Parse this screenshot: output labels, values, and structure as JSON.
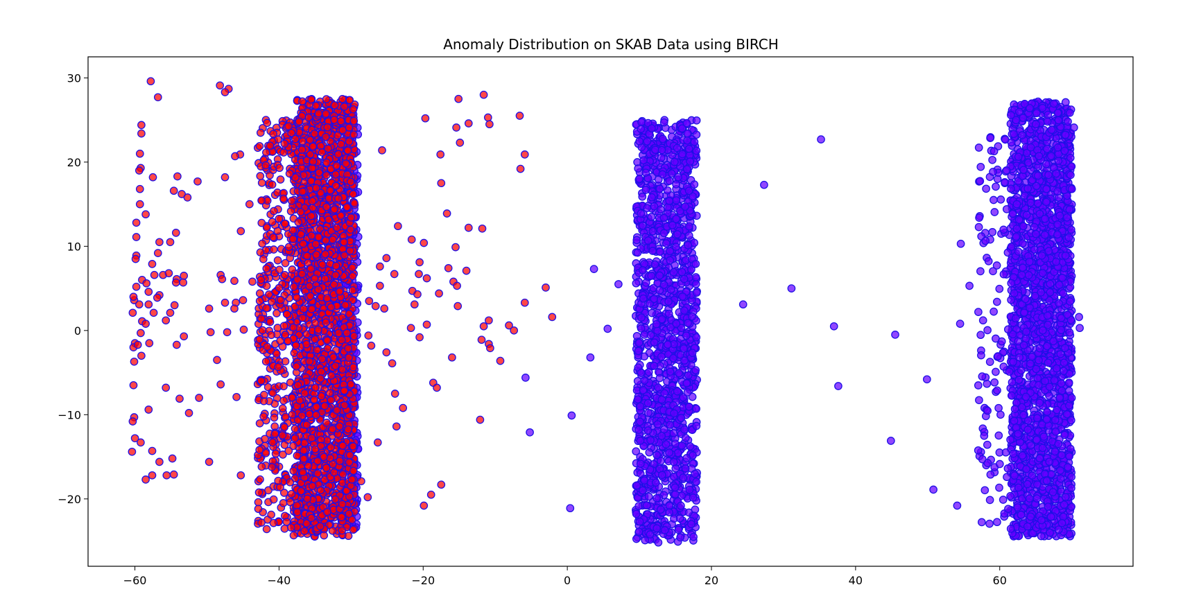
{
  "chart_data": {
    "type": "scatter",
    "title": "Anomaly Distribution on SKAB Data using BIRCH",
    "xlabel": "",
    "ylabel": "",
    "xlim": [
      -66.5,
      78.5
    ],
    "ylim": [
      -28,
      32.5
    ],
    "x_ticks": [
      -60,
      -40,
      -20,
      0,
      20,
      40,
      60
    ],
    "x_tick_labels": [
      "−60",
      "−40",
      "−20",
      "0",
      "20",
      "40",
      "60"
    ],
    "y_ticks": [
      -20,
      -10,
      0,
      10,
      20,
      30
    ],
    "y_tick_labels": [
      "−20",
      "−10",
      "0",
      "10",
      "20",
      "30"
    ],
    "grid": false,
    "legend": "none",
    "colors": {
      "anomaly_fill": "#ff0000",
      "normal_fill": "#6600ff",
      "edge": "#1f10e6"
    },
    "series": [
      {
        "color": "#ff0000",
        "dense_bands": [
          {
            "x_range": [
              -38,
              -29.5
            ],
            "y_range": [
              -24.5,
              27.5
            ],
            "count": 2200
          },
          {
            "x_range": [
              -43,
              -38
            ],
            "y_range": [
              -24,
              25
            ],
            "count": 380
          }
        ],
        "points": [
          [
            -57.8,
            29.6
          ],
          [
            -48.2,
            29.1
          ],
          [
            -47.0,
            28.7
          ],
          [
            -47.5,
            28.3
          ],
          [
            -56.8,
            27.7
          ],
          [
            -11.6,
            28.0
          ],
          [
            -15.1,
            27.5
          ],
          [
            -6.6,
            25.5
          ],
          [
            -19.7,
            25.2
          ],
          [
            -11.0,
            25.3
          ],
          [
            -13.7,
            24.6
          ],
          [
            -59.1,
            24.4
          ],
          [
            -10.8,
            24.5
          ],
          [
            -15.4,
            24.1
          ],
          [
            -59.1,
            23.4
          ],
          [
            -14.9,
            22.3
          ],
          [
            -25.7,
            21.4
          ],
          [
            -59.3,
            21.0
          ],
          [
            -45.4,
            20.9
          ],
          [
            -46.1,
            20.7
          ],
          [
            -17.6,
            20.9
          ],
          [
            -5.9,
            20.9
          ],
          [
            -59.2,
            19.3
          ],
          [
            -59.4,
            19.0
          ],
          [
            -6.5,
            19.2
          ],
          [
            -57.5,
            18.2
          ],
          [
            -47.5,
            18.2
          ],
          [
            -54.1,
            18.3
          ],
          [
            -51.3,
            17.7
          ],
          [
            -17.5,
            17.5
          ],
          [
            -59.3,
            16.8
          ],
          [
            -54.6,
            16.6
          ],
          [
            -53.5,
            16.2
          ],
          [
            -52.7,
            15.8
          ],
          [
            -59.3,
            15.0
          ],
          [
            -44.1,
            15.0
          ],
          [
            -58.5,
            13.8
          ],
          [
            -16.7,
            13.9
          ],
          [
            -59.8,
            12.8
          ],
          [
            -23.5,
            12.4
          ],
          [
            -13.7,
            12.2
          ],
          [
            -11.8,
            12.1
          ],
          [
            -45.3,
            11.8
          ],
          [
            -54.3,
            11.6
          ],
          [
            -59.8,
            11.1
          ],
          [
            -21.6,
            10.8
          ],
          [
            -19.9,
            10.4
          ],
          [
            -56.6,
            10.5
          ],
          [
            -55.1,
            10.5
          ],
          [
            -15.5,
            9.9
          ],
          [
            -56.8,
            9.2
          ],
          [
            -59.8,
            8.9
          ],
          [
            -59.9,
            8.5
          ],
          [
            -25.1,
            8.6
          ],
          [
            -20.5,
            8.1
          ],
          [
            -57.6,
            7.9
          ],
          [
            -26.0,
            7.6
          ],
          [
            -16.5,
            7.4
          ],
          [
            -57.3,
            6.6
          ],
          [
            -56.1,
            6.6
          ],
          [
            -55.3,
            6.8
          ],
          [
            -54.2,
            6.1
          ],
          [
            -53.2,
            6.5
          ],
          [
            -48.1,
            6.6
          ],
          [
            -46.2,
            5.9
          ],
          [
            -43.7,
            5.8
          ],
          [
            -59.0,
            6.0
          ],
          [
            -47.9,
            6.1
          ],
          [
            -24.0,
            6.7
          ],
          [
            -20.6,
            6.7
          ],
          [
            -19.5,
            6.2
          ],
          [
            -14.0,
            7.1
          ],
          [
            -59.8,
            5.2
          ],
          [
            -58.4,
            5.6
          ],
          [
            -54.3,
            5.7
          ],
          [
            -53.3,
            5.7
          ],
          [
            -26.0,
            5.3
          ],
          [
            -21.5,
            4.7
          ],
          [
            -15.8,
            5.8
          ],
          [
            -15.3,
            5.3
          ],
          [
            -60.1,
            3.6
          ],
          [
            -60.2,
            4.0
          ],
          [
            -58.1,
            4.6
          ],
          [
            -56.6,
            4.2
          ],
          [
            -56.9,
            3.9
          ],
          [
            -45.0,
            3.6
          ],
          [
            -46.0,
            3.3
          ],
          [
            -47.5,
            3.3
          ],
          [
            -27.5,
            3.5
          ],
          [
            -20.8,
            4.3
          ],
          [
            -17.8,
            4.4
          ],
          [
            -5.9,
            3.3
          ],
          [
            -3.0,
            5.1
          ],
          [
            -60.3,
            2.1
          ],
          [
            -59.4,
            3.1
          ],
          [
            -58.1,
            3.1
          ],
          [
            -57.4,
            2.1
          ],
          [
            -55.1,
            2.1
          ],
          [
            -54.5,
            3.0
          ],
          [
            -49.7,
            2.6
          ],
          [
            -46.2,
            2.6
          ],
          [
            -26.6,
            2.9
          ],
          [
            -21.2,
            3.1
          ],
          [
            -25.4,
            2.6
          ],
          [
            -15.2,
            2.9
          ],
          [
            -59.0,
            1.1
          ],
          [
            -58.5,
            0.8
          ],
          [
            -55.7,
            1.2
          ],
          [
            -10.9,
            1.2
          ],
          [
            -11.6,
            0.5
          ],
          [
            -8.1,
            0.6
          ],
          [
            -7.4,
            0.0
          ],
          [
            -2.1,
            1.6
          ],
          [
            -59.2,
            -0.3
          ],
          [
            -53.2,
            -0.7
          ],
          [
            -49.5,
            -0.2
          ],
          [
            -47.2,
            -0.2
          ],
          [
            -44.9,
            0.1
          ],
          [
            -27.6,
            -0.6
          ],
          [
            -21.7,
            0.3
          ],
          [
            -19.5,
            0.7
          ],
          [
            -60.0,
            -1.5
          ],
          [
            -60.2,
            -2.0
          ],
          [
            -59.6,
            -1.7
          ],
          [
            -58.0,
            -1.5
          ],
          [
            -54.2,
            -1.7
          ],
          [
            -27.2,
            -1.8
          ],
          [
            -20.5,
            -0.8
          ],
          [
            -11.9,
            -1.1
          ],
          [
            -10.9,
            -1.6
          ],
          [
            -10.7,
            -2.1
          ],
          [
            -60.1,
            -3.7
          ],
          [
            -59.1,
            -3.0
          ],
          [
            -48.6,
            -3.5
          ],
          [
            -25.1,
            -2.6
          ],
          [
            -24.3,
            -3.9
          ],
          [
            -16.0,
            -3.2
          ],
          [
            -9.3,
            -3.6
          ],
          [
            -60.2,
            -6.5
          ],
          [
            -55.7,
            -6.8
          ],
          [
            -48.1,
            -6.4
          ],
          [
            -18.6,
            -6.2
          ],
          [
            -18.1,
            -6.8
          ],
          [
            -23.9,
            -7.5
          ],
          [
            -53.8,
            -8.1
          ],
          [
            -51.1,
            -8.0
          ],
          [
            -45.9,
            -7.9
          ],
          [
            -52.5,
            -9.8
          ],
          [
            -58.1,
            -9.4
          ],
          [
            -22.8,
            -9.2
          ],
          [
            -60.1,
            -10.3
          ],
          [
            -60.3,
            -10.8
          ],
          [
            -12.1,
            -10.6
          ],
          [
            -23.7,
            -11.4
          ],
          [
            -60.0,
            -12.8
          ],
          [
            -59.2,
            -13.3
          ],
          [
            -26.3,
            -13.3
          ],
          [
            -60.4,
            -14.4
          ],
          [
            -57.6,
            -14.3
          ],
          [
            -56.6,
            -15.6
          ],
          [
            -54.8,
            -15.2
          ],
          [
            -49.7,
            -15.6
          ],
          [
            -57.6,
            -17.2
          ],
          [
            -54.6,
            -17.1
          ],
          [
            -58.5,
            -17.7
          ],
          [
            -55.6,
            -17.2
          ],
          [
            -45.3,
            -17.2
          ],
          [
            -17.5,
            -18.3
          ],
          [
            -28.6,
            -17.9
          ],
          [
            -18.9,
            -19.5
          ],
          [
            -27.7,
            -19.8
          ],
          [
            -19.9,
            -20.8
          ]
        ]
      },
      {
        "color": "#6600ff",
        "dense_bands": [
          {
            "x_range": [
              9.5,
              18
            ],
            "y_range": [
              -25.2,
              25.2
            ],
            "count": 1500
          },
          {
            "x_range": [
              61.5,
              70
            ],
            "y_range": [
              -24.5,
              27.2
            ],
            "count": 2200
          },
          {
            "x_range": [
              57,
              61.5
            ],
            "y_range": [
              -23,
              23
            ],
            "count": 120
          },
          {
            "x_range": [
              -31.5,
              -29
            ],
            "y_range": [
              -24,
              27
            ],
            "count": 250
          }
        ],
        "points": [
          [
            35.2,
            22.7
          ],
          [
            27.3,
            17.3
          ],
          [
            3.7,
            7.3
          ],
          [
            7.1,
            5.5
          ],
          [
            31.1,
            5.0
          ],
          [
            24.4,
            3.1
          ],
          [
            5.6,
            0.2
          ],
          [
            37.0,
            0.5
          ],
          [
            45.5,
            -0.5
          ],
          [
            3.2,
            -3.2
          ],
          [
            -5.8,
            -5.6
          ],
          [
            37.6,
            -6.6
          ],
          [
            49.9,
            -5.8
          ],
          [
            0.6,
            -10.1
          ],
          [
            -5.2,
            -12.1
          ],
          [
            44.9,
            -13.1
          ],
          [
            50.8,
            -18.9
          ],
          [
            0.4,
            -21.1
          ],
          [
            54.6,
            10.3
          ],
          [
            55.8,
            5.3
          ],
          [
            54.5,
            0.8
          ],
          [
            54.1,
            -20.8
          ],
          [
            71.1,
            0.3
          ],
          [
            71.0,
            1.6
          ],
          [
            70.0,
            16.8
          ],
          [
            70.3,
            24.1
          ]
        ]
      }
    ]
  }
}
